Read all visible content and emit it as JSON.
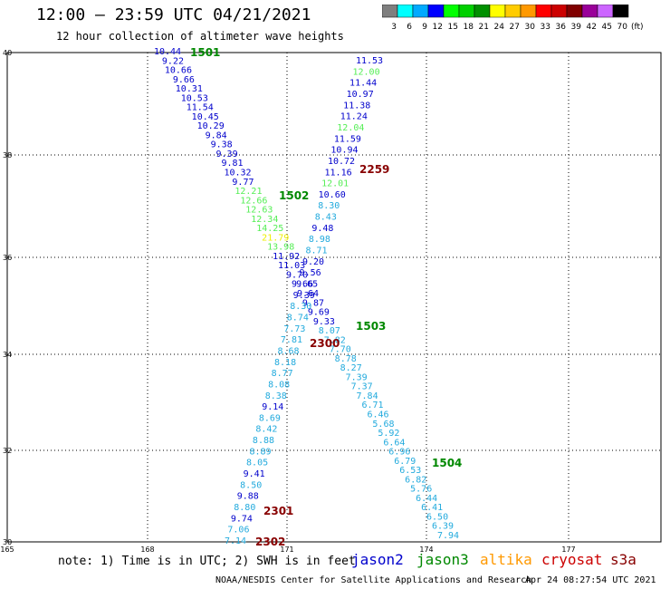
{
  "title": "12:00 – 23:59 UTC 04/21/2021",
  "subtitle": "12 hour collection of altimeter wave heights",
  "colorbar": {
    "unit_label": "(ft)",
    "bins": [
      {
        "label": "3",
        "color": "#7f7f7f"
      },
      {
        "label": "6",
        "color": "#00ffff"
      },
      {
        "label": "9",
        "color": "#00aaff"
      },
      {
        "label": "12",
        "color": "#0000ff"
      },
      {
        "label": "15",
        "color": "#00ff00"
      },
      {
        "label": "18",
        "color": "#00d000"
      },
      {
        "label": "21",
        "color": "#009000"
      },
      {
        "label": "24",
        "color": "#ffff00"
      },
      {
        "label": "27",
        "color": "#ffcc00"
      },
      {
        "label": "30",
        "color": "#ff9900"
      },
      {
        "label": "33",
        "color": "#ff0000"
      },
      {
        "label": "36",
        "color": "#cc0000"
      },
      {
        "label": "39",
        "color": "#800000"
      },
      {
        "label": "42",
        "color": "#990099"
      },
      {
        "label": "45",
        "color": "#cc66ff"
      },
      {
        "label": "70",
        "color": "#000000"
      }
    ]
  },
  "axes": {
    "x_ticks": [
      "165",
      "168",
      "171",
      "174",
      "177"
    ],
    "y_ticks": [
      "40",
      "38",
      "36",
      "34",
      "32",
      "30"
    ]
  },
  "time_labels": [
    "1501",
    "1502",
    "1503",
    "1504",
    "2259",
    "2300",
    "2301",
    "2302"
  ],
  "tracks": {
    "track1": [
      "10.44",
      "9.22",
      "10.66",
      "9.66",
      "10.31",
      "10.53",
      "11.54",
      "10.45",
      "10.29",
      "9.84",
      "9.38",
      "9.39",
      "9.81",
      "10.32",
      "9.77",
      "12.21",
      "12.66",
      "12.63",
      "12.34",
      "14.25",
      "21.79",
      "13.98",
      "11.92",
      "11.03",
      "9.70",
      "9.66",
      "9.64",
      "9.87",
      "9.69",
      "9.33",
      "8.07",
      "7.82",
      "7.70",
      "8.78",
      "8.27",
      "7.39",
      "7.37",
      "7.84",
      "6.71",
      "6.46",
      "5.68",
      "5.92",
      "6.64",
      "6.96",
      "6.79",
      "6.53",
      "6.82",
      "5.76",
      "6.44",
      "6.41",
      "6.50",
      "6.39",
      "7.94"
    ],
    "track2": [
      "11.53",
      "12.00",
      "11.44",
      "10.97",
      "11.38",
      "11.24",
      "12.04",
      "11.59",
      "10.94",
      "10.72",
      "11.16",
      "12.01",
      "10.60",
      "8.30",
      "8.43",
      "9.48",
      "8.98",
      "8.71",
      "9.20",
      "9.56",
      "9.65",
      "9.39",
      "8.30",
      "8.74",
      "7.73",
      "7.81",
      "8.68",
      "8.18",
      "8.77",
      "8.08",
      "8.38",
      "9.14",
      "8.69",
      "8.42",
      "8.88",
      "8.89",
      "8.05",
      "9.41",
      "8.50",
      "9.88",
      "8.80",
      "9.74",
      "7.06",
      "7.14"
    ]
  },
  "note": "note: 1) Time is in UTC; 2) SWH is in feet",
  "legend": [
    {
      "name": "jason2",
      "color": "#0000cc"
    },
    {
      "name": "jason3",
      "color": "#008800"
    },
    {
      "name": "altika",
      "color": "#ff9900"
    },
    {
      "name": "cryosat",
      "color": "#cc0000"
    },
    {
      "name": "s3a",
      "color": "#880000"
    }
  ],
  "credit": "NOAA/NESDIS Center for Satellite Applications and Research",
  "generated": "Apr 24 08:27:54 UTC 2021"
}
